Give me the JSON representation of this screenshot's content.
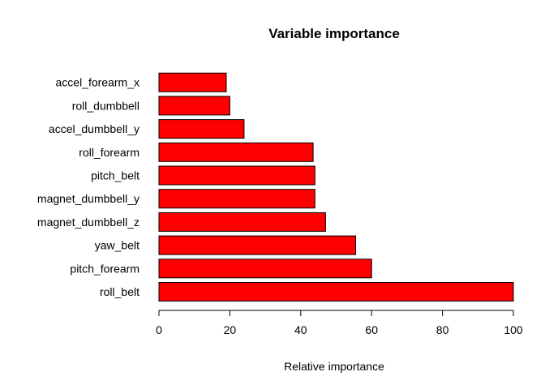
{
  "chart_data": {
    "type": "bar",
    "orientation": "horizontal",
    "title": "Variable importance",
    "xlabel": "Relative importance",
    "ylabel": "",
    "categories": [
      "roll_belt",
      "pitch_forearm",
      "yaw_belt",
      "magnet_dumbbell_z",
      "magnet_dumbbell_y",
      "pitch_belt",
      "roll_forearm",
      "accel_dumbbell_y",
      "roll_dumbbell",
      "accel_forearm_x"
    ],
    "values": [
      100,
      60,
      55.5,
      47,
      44,
      44,
      43.5,
      24,
      20,
      19
    ],
    "xlim": [
      0,
      100
    ],
    "xticks": [
      "0",
      "20",
      "40",
      "60",
      "80",
      "100"
    ],
    "bar_color": "#ff0000",
    "grid": false
  }
}
